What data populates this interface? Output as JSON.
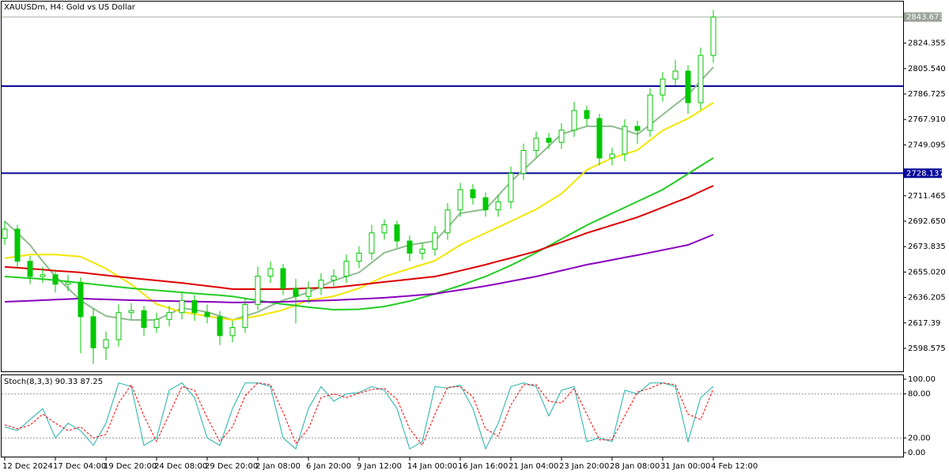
{
  "chart_data": [
    {
      "type": "candlestick",
      "title": "XAUUSDm, H4:  Gold vs US Dollar",
      "categories": [
        "12 Dec 2024",
        null,
        null,
        null,
        "17 Dec 04:00",
        null,
        null,
        null,
        "19 Dec 20:00",
        null,
        null,
        null,
        "24 Dec 08:00",
        null,
        null,
        null,
        "29 Dec 20:00",
        null,
        null,
        null,
        "2 Jan 08:00",
        null,
        null,
        null,
        "6 Jan 20:00",
        null,
        null,
        null,
        "9 Jan 12:00",
        null,
        null,
        null,
        "14 Jan 00:00",
        null,
        null,
        null,
        "16 Jan 16:00",
        null,
        null,
        null,
        "21 Jan 04:00",
        null,
        null,
        null,
        "23 Jan 20:00",
        null,
        null,
        null,
        "28 Jan 08:00",
        null,
        null,
        null,
        "31 Jan 00:00",
        null,
        null,
        null,
        "4 Feb 12:00"
      ],
      "open": [
        2680,
        2686.8,
        2663.0,
        2651.7,
        2653.0,
        2646.0,
        2647.5,
        2622.0,
        2599.0,
        2605.0,
        2625.0,
        2626.5,
        2614.0,
        2620.0,
        2625.0,
        2634.0,
        2625.0,
        2622.0,
        2608.0,
        2614.0,
        2631.0,
        2652.0,
        2657.6,
        2643.0,
        2637.0,
        2643.0,
        2649.0,
        2652.0,
        2663.0,
        2669.0,
        2684.0,
        2690.0,
        2678.0,
        2669.0,
        2672.0,
        2684.0,
        2701.0,
        2716.0,
        2710.0,
        2701.0,
        2707.0,
        2728.0,
        2745.0,
        2754.0,
        2751.0,
        2760.0,
        2774.5,
        2768.6,
        2739.4,
        2742.3,
        2762.8,
        2759.8,
        2786.0,
        2797.8,
        2803.7,
        2780.3,
        2815.3
      ],
      "high": [
        2692.6,
        2690,
        2667,
        2659,
        2657,
        2653,
        2651,
        2628,
        2611,
        2631,
        2632,
        2630,
        2625,
        2630,
        2640,
        2638,
        2631,
        2626,
        2619,
        2636,
        2659,
        2663,
        2661,
        2650,
        2648,
        2654,
        2657,
        2668,
        2674,
        2690,
        2694,
        2693,
        2682,
        2677,
        2689,
        2706,
        2721,
        2720,
        2714,
        2712,
        2733,
        2750,
        2759,
        2758,
        2765,
        2781,
        2778,
        2772,
        2747,
        2768,
        2767,
        2791,
        2803,
        2812,
        2808,
        2821,
        2849
      ],
      "low": [
        2675,
        2658,
        2646,
        2647,
        2640,
        2641,
        2595,
        2587,
        2590,
        2600,
        2620,
        2608,
        2610,
        2615,
        2620,
        2619,
        2617,
        2601,
        2603,
        2610,
        2627,
        2647,
        2638,
        2617,
        2632,
        2638,
        2644,
        2647,
        2658,
        2664,
        2679,
        2673,
        2663,
        2664,
        2667,
        2679,
        2696,
        2705,
        2696,
        2696,
        2702,
        2723,
        2740,
        2746,
        2746,
        2755,
        2763,
        2734,
        2734,
        2737,
        2750,
        2755,
        2781,
        2793,
        2772,
        2775,
        2810
      ],
      "close": [
        2686.8,
        2663.0,
        2651.7,
        2653.0,
        2646.0,
        2647.5,
        2622.0,
        2599.0,
        2605.0,
        2625.0,
        2626.5,
        2614.0,
        2620.0,
        2625.0,
        2634.0,
        2625.0,
        2622.0,
        2608.0,
        2614.0,
        2631.0,
        2652.0,
        2657.6,
        2643.0,
        2637.0,
        2643.0,
        2649.0,
        2652.0,
        2663.0,
        2669.0,
        2684.0,
        2690.0,
        2678.0,
        2669.0,
        2672.0,
        2684.0,
        2701.0,
        2716.0,
        2710.0,
        2701.0,
        2707.0,
        2728.0,
        2745.0,
        2754.0,
        2751.0,
        2760.0,
        2774.5,
        2768.6,
        2739.4,
        2742.3,
        2762.8,
        2759.8,
        2786.0,
        2797.8,
        2803.7,
        2780.3,
        2815.3,
        2843.7
      ],
      "color": "#00c800",
      "series": [
        {
          "color": "#8fbc8f",
          "values": [
            2692.6,
            2684,
            2675,
            2663,
            2651.7,
            2643,
            2634,
            2628,
            2622.5,
            2621,
            2619.6,
            2619.6,
            2619.6,
            2624,
            2628.4,
            2627,
            2625.5,
            2622.5,
            2619.6,
            2622.5,
            2625.5,
            2630,
            2634.2,
            2637,
            2640,
            2644.4,
            2648.8,
            2651.8,
            2654.7,
            2662,
            2669.3,
            2672.2,
            2675.1,
            2676.5,
            2678,
            2688,
            2698.5,
            2700,
            2701.4,
            2711.6,
            2721.9,
            2730.6,
            2739.4,
            2748.2,
            2757,
            2760,
            2762.8,
            2762.8,
            2762.8,
            2760,
            2757,
            2764,
            2771.5,
            2778.8,
            2786.1,
            2796.4,
            2806.6
          ]
        },
        {
          "color": "#f2e600",
          "values": [
            2665.2,
            2666.6,
            2668,
            2668,
            2668,
            2667.2,
            2666.4,
            2662,
            2657.6,
            2651.8,
            2645.9,
            2638.6,
            2631.3,
            2628.4,
            2625.5,
            2624,
            2622.5,
            2621,
            2619.6,
            2621,
            2622.5,
            2624.8,
            2627,
            2630.6,
            2634.2,
            2635.6,
            2637.1,
            2640,
            2643,
            2647.4,
            2651.7,
            2654.6,
            2657.6,
            2660.5,
            2663.4,
            2669.2,
            2675.1,
            2679.5,
            2683.9,
            2688.2,
            2692.6,
            2697,
            2701.4,
            2707.2,
            2713,
            2721.8,
            2730.6,
            2735,
            2739.4,
            2742.3,
            2745.2,
            2752.5,
            2759.8,
            2764.2,
            2768.6,
            2774.4,
            2780.3
          ]
        },
        {
          "color": "#22cc22",
          "values": [
            2651.7,
            2651.1,
            2650.5,
            2649.8,
            2649,
            2648,
            2647,
            2646,
            2645,
            2644,
            2643,
            2642.2,
            2641.5,
            2640.8,
            2640,
            2639.2,
            2638.5,
            2637.8,
            2637,
            2635.5,
            2634,
            2632.6,
            2631.3,
            2630.2,
            2629,
            2628.1,
            2627.2,
            2627.3,
            2627.5,
            2628.5,
            2629.5,
            2631.5,
            2633.5,
            2636.2,
            2638.9,
            2642,
            2645,
            2648.4,
            2651.7,
            2655.8,
            2660,
            2664.6,
            2669.3,
            2674.4,
            2679.5,
            2684.6,
            2689.7,
            2694.1,
            2698.5,
            2702.8,
            2707.2,
            2711.6,
            2716,
            2721.8,
            2727.7,
            2733.6,
            2739.4
          ]
        },
        {
          "color": "#dd0000",
          "values": [
            2658.8,
            2658.2,
            2657.5,
            2656.8,
            2656,
            2655.4,
            2654.7,
            2653.6,
            2652.6,
            2651.6,
            2650.6,
            2649.7,
            2648.8,
            2647.9,
            2647,
            2645.8,
            2644.7,
            2643.6,
            2642.4,
            2642.4,
            2642.4,
            2642.4,
            2642.4,
            2642.7,
            2643,
            2643.3,
            2643.6,
            2644.6,
            2645.6,
            2646.6,
            2647.7,
            2648.7,
            2649.7,
            2650.7,
            2651.7,
            2653.8,
            2656,
            2658.2,
            2660.5,
            2663,
            2665.4,
            2667.9,
            2670.4,
            2673.8,
            2677.1,
            2680.5,
            2683.9,
            2686.8,
            2689.7,
            2692.6,
            2695.6,
            2699.2,
            2702.9,
            2706.6,
            2710.2,
            2714.6,
            2718.9
          ]
        },
        {
          "color": "#8a00c0",
          "values": [
            2633,
            2633.4,
            2633.8,
            2634.2,
            2634.6,
            2635,
            2635.4,
            2635.1,
            2634.8,
            2634.5,
            2634.2,
            2634,
            2633.8,
            2633.6,
            2633.4,
            2633.2,
            2633,
            2632.8,
            2632.5,
            2632.6,
            2632.8,
            2632.9,
            2633,
            2633.3,
            2633.6,
            2633.9,
            2634.2,
            2634.6,
            2635.1,
            2635.5,
            2636,
            2636.7,
            2637.4,
            2638.2,
            2638.9,
            2640.4,
            2641.8,
            2643.2,
            2644.7,
            2646.4,
            2648.2,
            2650,
            2651.7,
            2653.9,
            2656.1,
            2658.3,
            2660.5,
            2662.2,
            2664,
            2665.8,
            2667.5,
            2669.4,
            2671.3,
            2673.2,
            2675.1,
            2678.9,
            2682.7
          ]
        }
      ],
      "ylim": [
        2581.6,
        2855.1
      ],
      "yticks": [
        2598.575,
        2617.39,
        2636.205,
        {
          "value": 2655.02,
          "label": "2655.020"
        },
        2673.835,
        {
          "value": 2692.65,
          "label": "2692.650"
        },
        2711.465,
        2749.095,
        {
          "value": 2767.91,
          "label": "2767.910"
        },
        2786.725,
        {
          "value": 2805.54,
          "label": "2805.540"
        },
        2824.355
      ],
      "bid": 2843.673,
      "support_level": 2728.137,
      "resistance_level": 2792.6,
      "level_color": "#0a0a9a"
    },
    {
      "type": "line",
      "title": "Stoch(8,3,3)",
      "series": [
        {
          "color": "#20b2aa",
          "values": [
            35,
            30,
            45,
            60,
            20,
            40,
            30,
            10,
            40,
            95,
            90,
            10,
            20,
            85,
            95,
            75,
            20,
            10,
            60,
            95,
            95,
            90,
            20,
            5,
            60,
            90,
            70,
            80,
            82,
            90,
            85,
            60,
            5,
            15,
            90,
            88,
            92,
            60,
            5,
            40,
            90,
            95,
            90,
            50,
            85,
            90,
            15,
            20,
            15,
            85,
            80,
            95,
            95,
            90,
            15,
            75,
            90.33
          ]
        },
        {
          "color": "#ff0000",
          "dashed": true,
          "values": [
            38,
            32.5,
            37.5,
            52.5,
            40,
            30,
            35,
            20,
            25,
            67.5,
            92.5,
            50,
            15,
            52.5,
            90,
            85,
            47.5,
            15,
            35,
            77.5,
            95,
            92.5,
            55,
            12.5,
            32.5,
            75,
            80,
            75,
            81,
            86,
            87.5,
            72.5,
            32.5,
            10,
            52.5,
            89,
            90,
            76,
            32.5,
            22.5,
            65,
            92.5,
            92.5,
            70,
            67.5,
            87.5,
            52.5,
            17.5,
            17.5,
            50,
            82.5,
            87.5,
            95,
            92.5,
            52.5,
            45,
            87.25
          ]
        }
      ],
      "ylim": [
        -5.4,
        105.4
      ],
      "yticks": [
        {
          "value": 100,
          "label": "100.00"
        },
        {
          "value": 80,
          "label": "80.00"
        },
        {
          "value": 20,
          "label": "20.00"
        },
        {
          "value": 0,
          "label": "0.00"
        }
      ],
      "levels": [
        80,
        20
      ]
    }
  ]
}
